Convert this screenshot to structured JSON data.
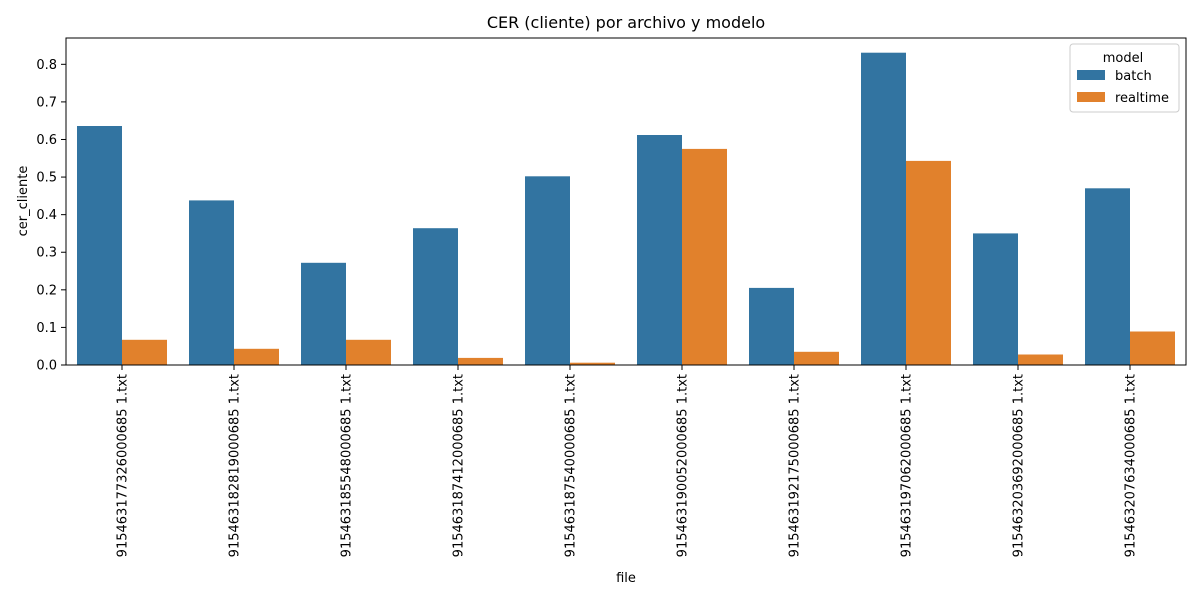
{
  "chart_data": {
    "type": "bar",
    "title": "CER (cliente) por archivo y modelo",
    "xlabel": "file",
    "ylabel": "cer_cliente",
    "ylim": [
      0,
      0.87
    ],
    "yticks": [
      "0.0",
      "0.1",
      "0.2",
      "0.3",
      "0.4",
      "0.5",
      "0.6",
      "0.7",
      "0.8"
    ],
    "grid": false,
    "legend": {
      "title": "model",
      "position": "top-right"
    },
    "categories": [
      "915463177326000685 1.txt",
      "915463182819000685 1.txt",
      "915463185548000685 1.txt",
      "915463187412000685 1.txt",
      "915463187540000685 1.txt",
      "915463190052000685 1.txt",
      "915463192175000685 1.txt",
      "915463197062000685 1.txt",
      "915463203692000685 1.txt",
      "915463207634000685 1.txt"
    ],
    "series": [
      {
        "name": "batch",
        "color": "#3274a1",
        "values": [
          0.636,
          0.438,
          0.272,
          0.364,
          0.502,
          0.612,
          0.205,
          0.831,
          0.35,
          0.47
        ]
      },
      {
        "name": "realtime",
        "color": "#e1812c",
        "values": [
          0.067,
          0.043,
          0.067,
          0.019,
          0.006,
          0.575,
          0.035,
          0.543,
          0.028,
          0.089
        ]
      }
    ]
  }
}
